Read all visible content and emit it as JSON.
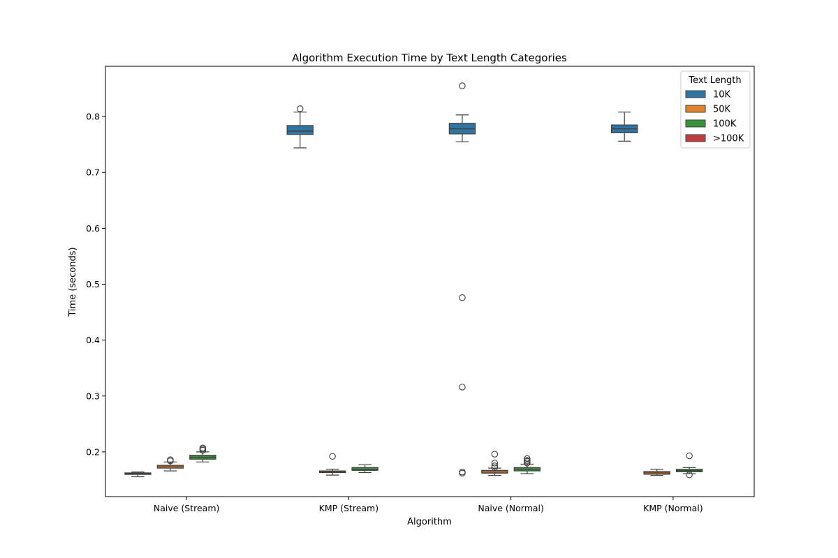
{
  "chart_data": {
    "type": "box",
    "title": "Algorithm Execution Time by Text Length Categories",
    "xlabel": "Algorithm",
    "ylabel": "Time (seconds)",
    "ylim": [
      0.12,
      0.89
    ],
    "yticks": [
      0.2,
      0.3,
      0.4,
      0.5,
      0.6,
      0.7,
      0.8
    ],
    "ytick_labels": [
      "0.2",
      "0.3",
      "0.4",
      "0.5",
      "0.6",
      "0.7",
      "0.8"
    ],
    "categories": [
      "Naive (Stream)",
      "KMP (Stream)",
      "Naive (Normal)",
      "KMP (Normal)"
    ],
    "grid": false,
    "legend": {
      "title": "Text Length",
      "position": "top-right",
      "entries": [
        {
          "label": "10K",
          "color": "#3274a1"
        },
        {
          "label": "50K",
          "color": "#e1812c"
        },
        {
          "label": "100K",
          "color": "#3a923a"
        },
        {
          "label": ">100K",
          "color": "#c03d3e"
        }
      ]
    },
    "series": [
      {
        "name": "10K",
        "color": "#3274a1",
        "boxes": [
          {
            "whislo": 0.1555,
            "q1": 0.1598,
            "med": 0.161,
            "q3": 0.1625,
            "whishi": 0.164,
            "fliers": []
          },
          {
            "whislo": 0.744,
            "q1": 0.768,
            "med": 0.774,
            "q3": 0.784,
            "whishi": 0.808,
            "fliers": [
              0.814
            ]
          },
          {
            "whislo": 0.755,
            "q1": 0.769,
            "med": 0.778,
            "q3": 0.788,
            "whishi": 0.803,
            "fliers": [
              0.855,
              0.476,
              0.316,
              0.164,
              0.162
            ]
          },
          {
            "whislo": 0.756,
            "q1": 0.771,
            "med": 0.778,
            "q3": 0.785,
            "whishi": 0.808,
            "fliers": []
          }
        ]
      },
      {
        "name": "50K",
        "color": "#e1812c",
        "boxes": [
          {
            "whislo": 0.166,
            "q1": 0.171,
            "med": 0.1735,
            "q3": 0.176,
            "whishi": 0.182,
            "fliers": [
              0.184,
              0.186
            ]
          },
          {
            "whislo": 0.1585,
            "q1": 0.163,
            "med": 0.1645,
            "q3": 0.166,
            "whishi": 0.169,
            "fliers": [
              0.192
            ]
          },
          {
            "whislo": 0.158,
            "q1": 0.162,
            "med": 0.164,
            "q3": 0.167,
            "whishi": 0.171,
            "fliers": [
              0.172,
              0.175,
              0.18,
              0.196
            ]
          },
          {
            "whislo": 0.158,
            "q1": 0.16,
            "med": 0.1625,
            "q3": 0.165,
            "whishi": 0.169,
            "fliers": []
          }
        ]
      },
      {
        "name": "100K",
        "color": "#3a923a",
        "boxes": [
          {
            "whislo": 0.182,
            "q1": 0.187,
            "med": 0.1905,
            "q3": 0.194,
            "whishi": 0.2,
            "fliers": [
              0.203,
              0.205,
              0.207
            ]
          },
          {
            "whislo": 0.163,
            "q1": 0.167,
            "med": 0.169,
            "q3": 0.172,
            "whishi": 0.177,
            "fliers": []
          },
          {
            "whislo": 0.161,
            "q1": 0.166,
            "med": 0.169,
            "q3": 0.172,
            "whishi": 0.178,
            "fliers": [
              0.18,
              0.183,
              0.185,
              0.188
            ]
          },
          {
            "whislo": 0.161,
            "q1": 0.1645,
            "med": 0.1665,
            "q3": 0.169,
            "whishi": 0.172,
            "fliers": [
              0.159,
              0.193
            ]
          }
        ]
      },
      {
        "name": ">100K",
        "color": "#c03d3e",
        "boxes": [
          null,
          null,
          null,
          null
        ]
      }
    ]
  }
}
